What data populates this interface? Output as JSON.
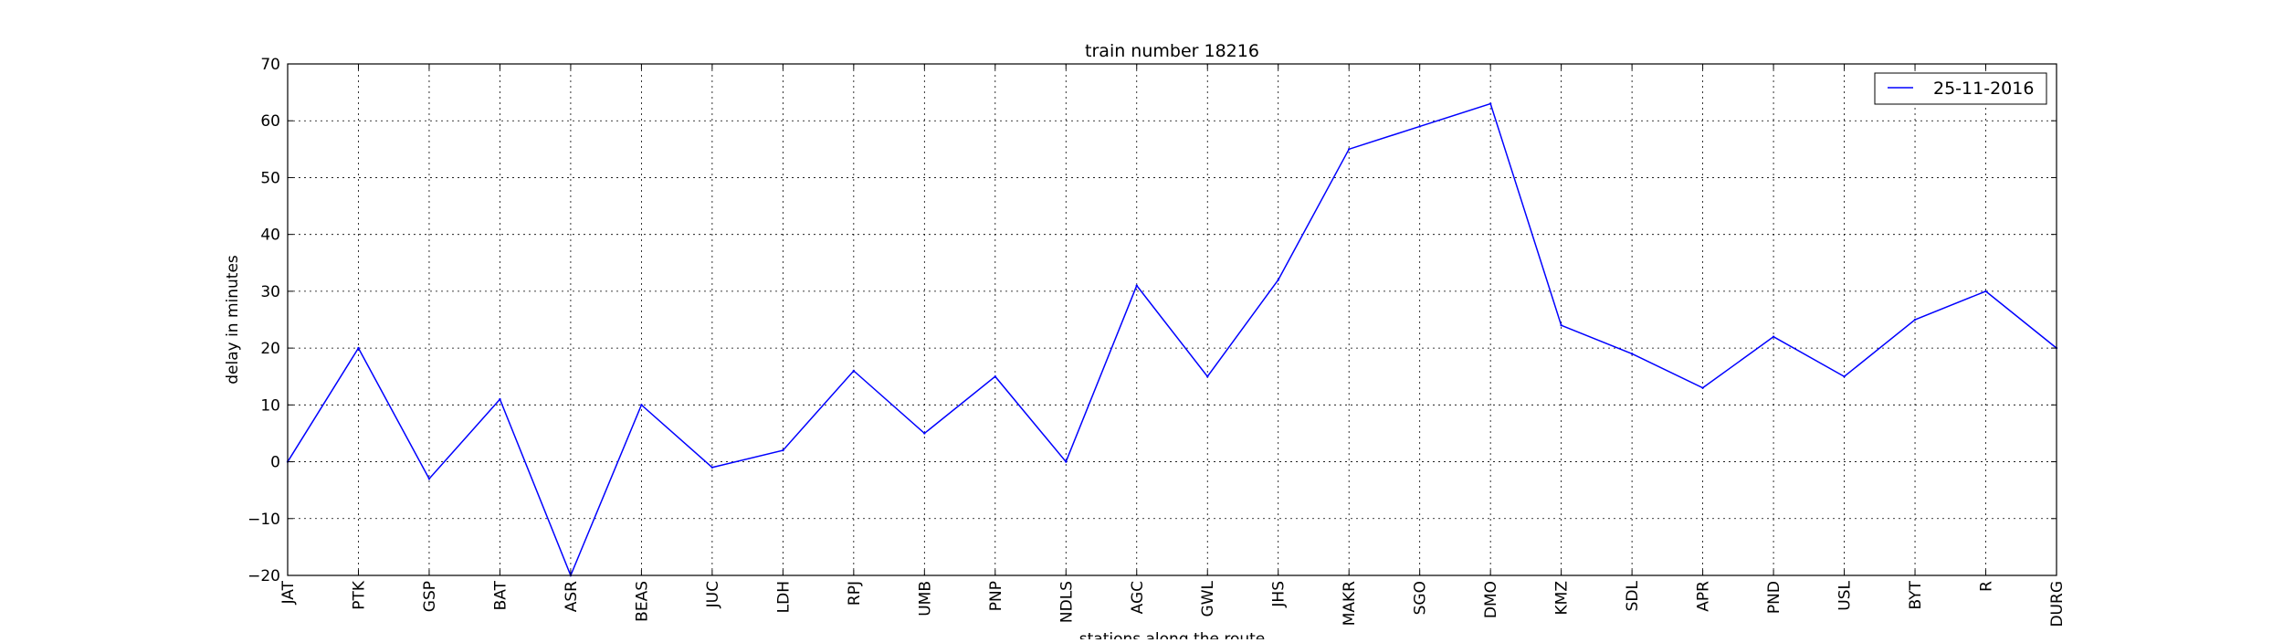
{
  "chart_data": {
    "type": "line",
    "title": "train number 18216",
    "xlabel": "stations along the route",
    "ylabel": "delay in minutes",
    "categories": [
      "JAT",
      "PTK",
      "GSP",
      "BAT",
      "ASR",
      "BEAS",
      "JUC",
      "LDH",
      "RPJ",
      "UMB",
      "PNP",
      "NDLS",
      "AGC",
      "GWL",
      "JHS",
      "MAKR",
      "SGO",
      "DMO",
      "KMZ",
      "SDL",
      "APR",
      "PND",
      "USL",
      "BYT",
      "R",
      "DURG"
    ],
    "series": [
      {
        "name": "25-11-2016",
        "color": "#0000ff",
        "values": [
          0,
          20,
          -3,
          11,
          -20,
          10,
          -1,
          2,
          16,
          5,
          15,
          0,
          31,
          15,
          32,
          55,
          59,
          63,
          24,
          19,
          13,
          22,
          15,
          25,
          30,
          20
        ]
      }
    ],
    "ylim": [
      -20,
      70
    ],
    "yticks": [
      -20,
      -10,
      0,
      10,
      20,
      30,
      40,
      50,
      60,
      70
    ],
    "ytick_labels": [
      "−20",
      "−10",
      "0",
      "10",
      "20",
      "30",
      "40",
      "50",
      "60",
      "70"
    ],
    "grid": true,
    "legend_position": "top-right"
  }
}
